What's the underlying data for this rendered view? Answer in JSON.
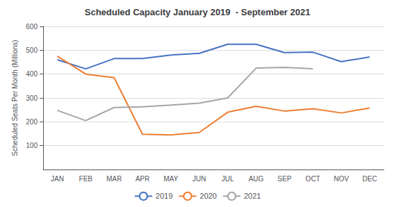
{
  "chart_data": {
    "type": "line",
    "title": "Scheduled Capacity January 2019  - September 2021",
    "y_label": "Scheduled Seats Per Month (Millions)",
    "categories": [
      "JAN",
      "FEB",
      "MAR",
      "APR",
      "MAY",
      "JUN",
      "JUL",
      "AUG",
      "SEP",
      "OCT",
      "NOV",
      "DEC"
    ],
    "series": [
      {
        "name": "2019",
        "color": "#4472C4",
        "values": [
          460,
          422,
          465,
          465,
          480,
          487,
          525,
          525,
          490,
          492,
          452,
          472
        ]
      },
      {
        "name": "2020",
        "color": "#ED7D31",
        "values": [
          475,
          400,
          385,
          148,
          145,
          155,
          240,
          265,
          245,
          255,
          237,
          258
        ]
      },
      {
        "name": "2021",
        "color": "#A5A5A5",
        "values": [
          248,
          205,
          260,
          263,
          270,
          278,
          300,
          425,
          428,
          422,
          null,
          null
        ]
      }
    ],
    "ylim": [
      0,
      600
    ],
    "yticks": [
      100,
      200,
      300,
      400,
      500,
      600
    ],
    "grid": true,
    "legend": "bottom"
  }
}
